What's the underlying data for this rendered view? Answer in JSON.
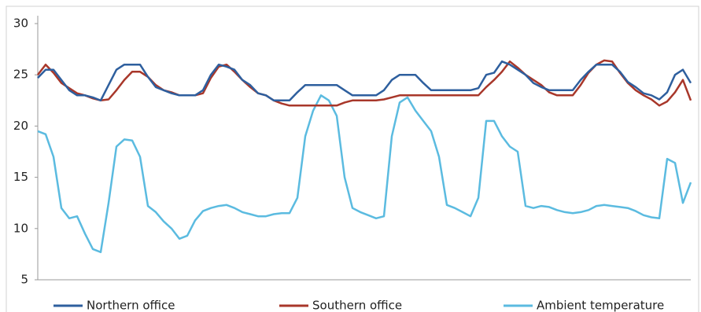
{
  "chart_data": {
    "type": "line",
    "categories": [
      null,
      null,
      null,
      null,
      null,
      null,
      null,
      null,
      null,
      null,
      null,
      null,
      null,
      null,
      null,
      null,
      null,
      null,
      null,
      null,
      null,
      null,
      null,
      null,
      null,
      null,
      null,
      null,
      null,
      null,
      null,
      null,
      null,
      null,
      null,
      null,
      null,
      null,
      null,
      null,
      null,
      null,
      null,
      null,
      null,
      null,
      null,
      null,
      null,
      null,
      null,
      null,
      null,
      null,
      null,
      null,
      null,
      null,
      null,
      null,
      null,
      null,
      null,
      null,
      null,
      null,
      null,
      null,
      null,
      null,
      null,
      null,
      null,
      null,
      null,
      null,
      null,
      null,
      null,
      null,
      null,
      null,
      null,
      null
    ],
    "series": [
      {
        "name": "Northern office",
        "color": "#2e5f9e",
        "values": [
          24.7,
          25.5,
          25.5,
          24.5,
          23.5,
          23,
          23,
          22.8,
          22.5,
          24,
          25.5,
          26,
          26,
          26,
          24.8,
          23.8,
          23.5,
          23.2,
          23,
          23,
          23,
          23.5,
          25,
          26,
          25.8,
          25.5,
          24.5,
          24,
          23.2,
          23,
          22.5,
          22.5,
          22.5,
          23.3,
          24,
          24,
          24,
          24,
          24,
          23.5,
          23,
          23,
          23,
          23,
          23.5,
          24.5,
          25,
          25,
          25,
          24.2,
          23.5,
          23.5,
          23.5,
          23.5,
          23.5,
          23.5,
          23.7,
          25,
          25.2,
          26.3,
          26,
          25.5,
          25,
          24.2,
          23.8,
          23.5,
          23.5,
          23.5,
          23.5,
          24.5,
          25.3,
          26,
          26,
          26,
          25.3,
          24.3,
          23.8,
          23.2,
          23,
          22.6,
          23.3,
          25,
          25.5,
          24.2
        ]
      },
      {
        "name": "Southern office",
        "color": "#a8372a",
        "values": [
          25,
          26,
          25.2,
          24.2,
          23.7,
          23.2,
          23,
          22.7,
          22.5,
          22.6,
          23.5,
          24.5,
          25.3,
          25.3,
          24.8,
          24,
          23.5,
          23.3,
          23,
          23,
          23,
          23.2,
          24.7,
          25.8,
          26,
          25.3,
          24.5,
          23.8,
          23.2,
          23,
          22.5,
          22.2,
          22,
          22,
          22,
          22,
          22,
          22,
          22,
          22.3,
          22.5,
          22.5,
          22.5,
          22.5,
          22.6,
          22.8,
          23,
          23,
          23,
          23,
          23,
          23,
          23,
          23,
          23,
          23,
          23,
          23.8,
          24.5,
          25.3,
          26.3,
          25.7,
          25,
          24.5,
          24,
          23.3,
          23,
          23,
          23,
          24,
          25.2,
          26,
          26.4,
          26.3,
          25.2,
          24.2,
          23.5,
          23,
          22.6,
          22,
          22.4,
          23.3,
          24.5,
          22.5
        ]
      },
      {
        "name": "Ambient temperature",
        "color": "#5bbbe0",
        "values": [
          19.5,
          19.2,
          17,
          12,
          11,
          11.2,
          9.5,
          8,
          7.7,
          12.5,
          18,
          18.7,
          18.6,
          17,
          12.2,
          11.6,
          10.7,
          10,
          9,
          9.3,
          10.8,
          11.7,
          12,
          12.2,
          12.3,
          12,
          11.6,
          11.4,
          11.2,
          11.2,
          11.4,
          11.5,
          11.5,
          13,
          19,
          21.5,
          23,
          22.5,
          21,
          15,
          12,
          11.6,
          11.3,
          11,
          11.2,
          19,
          22.3,
          22.8,
          21.5,
          20.5,
          19.5,
          17,
          12.3,
          12,
          11.6,
          11.2,
          13,
          20.5,
          20.5,
          19,
          18,
          17.5,
          12.2,
          12,
          12.2,
          12.1,
          11.8,
          11.6,
          11.5,
          11.6,
          11.8,
          12.2,
          12.3,
          12.2,
          12.1,
          12,
          11.7,
          11.3,
          11.1,
          11,
          16.8,
          16.4,
          12.5,
          14.5
        ]
      }
    ],
    "ylim": [
      5,
      30
    ],
    "yticks": [
      5,
      10,
      15,
      20,
      25,
      30
    ],
    "grid": false,
    "legend": "bottom"
  }
}
